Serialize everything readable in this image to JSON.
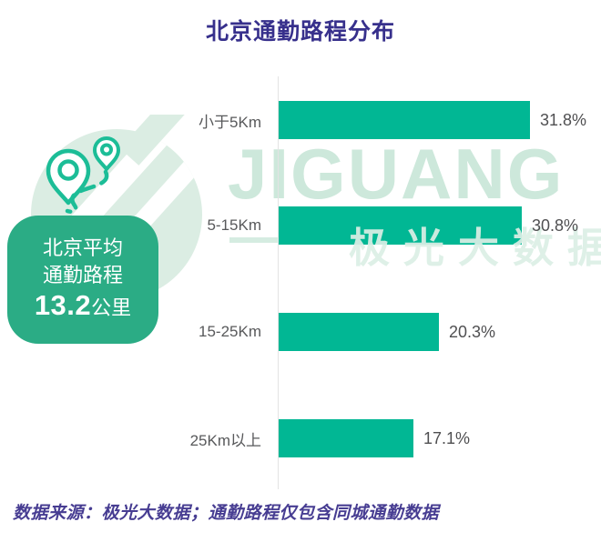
{
  "header": {
    "title": "北京通勤路程分布",
    "title_color": "#37308C"
  },
  "chart_data": {
    "type": "bar",
    "orientation": "horizontal",
    "title": "北京通勤路程分布",
    "categories": [
      "小于5Km",
      "5-15Km",
      "15-25Km",
      "25Km以上"
    ],
    "values": [
      31.8,
      30.8,
      20.3,
      17.1
    ],
    "value_labels": [
      "31.8%",
      "30.8%",
      "20.3%",
      "17.1%"
    ],
    "unit": "%",
    "xlim": [
      0,
      35
    ],
    "grid": false,
    "legend": "none",
    "bar_color": "#01B794",
    "label_color": "#58595B"
  },
  "callout": {
    "line1": "北京平均",
    "line2": "通勤路程",
    "value": "13.2",
    "unit": "公里",
    "bg_color": "#2BAC85"
  },
  "watermark": {
    "latin": "JIGUANG",
    "cn": "极光大数据"
  },
  "icons": {
    "pins": "location-pins-with-route"
  },
  "footer": {
    "text": "数据来源：极光大数据；通勤路程仅包含同城通勤数据",
    "color": "#473D92"
  }
}
